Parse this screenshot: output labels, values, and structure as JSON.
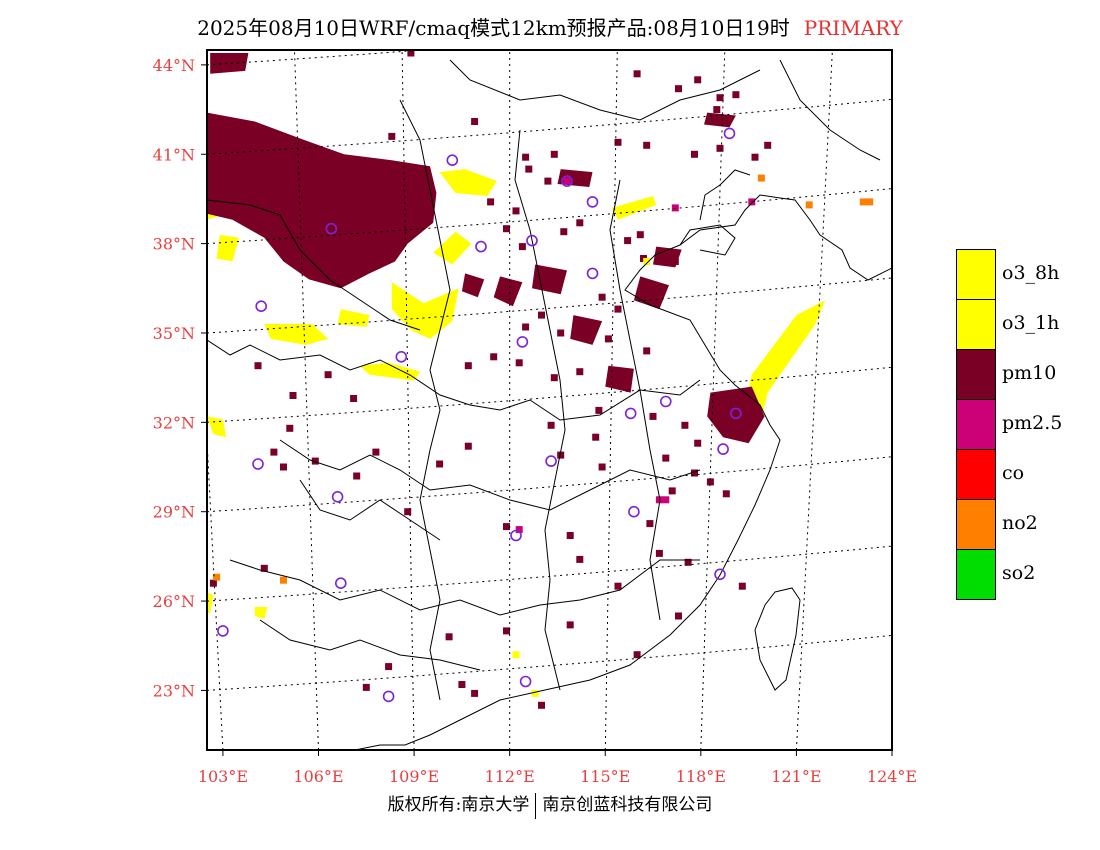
{
  "title": {
    "main": "2025年08月10日WRF/cmaq模式12km预报产品:08月10日19时",
    "tag": "PRIMARY"
  },
  "map": {
    "lon_range": [
      102.5,
      124
    ],
    "lat_range": [
      21,
      44.5
    ],
    "lat_labels": [
      "44°N",
      "41°N",
      "38°N",
      "35°N",
      "32°N",
      "29°N",
      "26°N",
      "23°N"
    ],
    "lon_labels": [
      "103°E",
      "106°E",
      "109°E",
      "112°E",
      "115°E",
      "118°E",
      "121°E",
      "124°E"
    ],
    "colors": {
      "o3_8h": "#ffff00",
      "pm10": "#7a0026",
      "pm2_5": "#cc0077",
      "no2": "#ff7f00",
      "station": "#7a22dd",
      "grid": "#000000",
      "border": "#000000"
    },
    "stations": [
      {
        "lon": 118.9,
        "lat": 41.7
      },
      {
        "lon": 110.2,
        "lat": 40.8
      },
      {
        "lon": 113.8,
        "lat": 40.1
      },
      {
        "lon": 114.6,
        "lat": 39.4
      },
      {
        "lon": 106.4,
        "lat": 38.5
      },
      {
        "lon": 111.1,
        "lat": 37.9
      },
      {
        "lon": 112.7,
        "lat": 38.1
      },
      {
        "lon": 114.6,
        "lat": 37.0
      },
      {
        "lon": 104.2,
        "lat": 35.9
      },
      {
        "lon": 112.4,
        "lat": 34.7
      },
      {
        "lon": 108.6,
        "lat": 34.2
      },
      {
        "lon": 116.9,
        "lat": 32.7
      },
      {
        "lon": 115.8,
        "lat": 32.3
      },
      {
        "lon": 119.1,
        "lat": 32.3
      },
      {
        "lon": 118.7,
        "lat": 31.1
      },
      {
        "lon": 104.1,
        "lat": 30.6
      },
      {
        "lon": 113.3,
        "lat": 30.7
      },
      {
        "lon": 106.6,
        "lat": 29.5
      },
      {
        "lon": 115.9,
        "lat": 29.0
      },
      {
        "lon": 112.2,
        "lat": 28.2
      },
      {
        "lon": 106.7,
        "lat": 26.6
      },
      {
        "lon": 118.6,
        "lat": 26.9
      },
      {
        "lon": 103.0,
        "lat": 25.0
      },
      {
        "lon": 112.5,
        "lat": 23.3
      },
      {
        "lon": 108.2,
        "lat": 22.8
      }
    ],
    "pm10_areas": [
      [
        [
          102.5,
          42.4
        ],
        [
          104,
          42.1
        ],
        [
          105.5,
          41.5
        ],
        [
          106.8,
          41.0
        ],
        [
          108.3,
          40.8
        ],
        [
          109.5,
          40.6
        ],
        [
          109.7,
          39.7
        ],
        [
          109.6,
          38.7
        ],
        [
          108.8,
          38.0
        ],
        [
          108.4,
          37.4
        ],
        [
          107.6,
          37.0
        ],
        [
          106.7,
          36.5
        ],
        [
          105.7,
          36.8
        ],
        [
          104.9,
          37.4
        ],
        [
          104.3,
          38.2
        ],
        [
          103.3,
          38.8
        ],
        [
          102.5,
          39.0
        ]
      ],
      [
        [
          102.6,
          44.4
        ],
        [
          103.8,
          44.4
        ],
        [
          103.7,
          43.8
        ],
        [
          102.6,
          43.7
        ]
      ],
      [
        [
          112.8,
          37.3
        ],
        [
          113.8,
          37.1
        ],
        [
          113.6,
          36.3
        ],
        [
          112.7,
          36.5
        ]
      ],
      [
        [
          118.3,
          33.0
        ],
        [
          119.6,
          33.2
        ],
        [
          120.0,
          32.2
        ],
        [
          119.5,
          31.3
        ],
        [
          118.7,
          31.5
        ],
        [
          118.2,
          32.2
        ]
      ],
      [
        [
          115.1,
          33.9
        ],
        [
          115.9,
          33.8
        ],
        [
          115.8,
          33.0
        ],
        [
          115.0,
          33.2
        ]
      ],
      [
        [
          114.0,
          35.6
        ],
        [
          114.9,
          35.4
        ],
        [
          114.6,
          34.6
        ],
        [
          113.9,
          34.8
        ]
      ],
      [
        [
          116.1,
          36.9
        ],
        [
          117.0,
          36.6
        ],
        [
          116.7,
          35.8
        ],
        [
          115.9,
          36.1
        ]
      ],
      [
        [
          116.6,
          37.9
        ],
        [
          117.4,
          37.8
        ],
        [
          117.2,
          37.2
        ],
        [
          116.5,
          37.3
        ]
      ],
      [
        [
          113.6,
          40.5
        ],
        [
          114.6,
          40.4
        ],
        [
          114.5,
          39.9
        ],
        [
          113.5,
          40.0
        ]
      ],
      [
        [
          118.2,
          42.4
        ],
        [
          119.1,
          42.3
        ],
        [
          118.9,
          41.9
        ],
        [
          118.1,
          42.0
        ]
      ],
      [
        [
          111.7,
          36.9
        ],
        [
          112.4,
          36.7
        ],
        [
          112.1,
          35.9
        ],
        [
          111.5,
          36.2
        ]
      ],
      [
        [
          110.6,
          37.0
        ],
        [
          111.2,
          36.8
        ],
        [
          111.0,
          36.2
        ],
        [
          110.5,
          36.4
        ]
      ]
    ],
    "o3_areas": [
      [
        [
          102.5,
          40.5
        ],
        [
          103.3,
          40.4
        ],
        [
          103.9,
          40.0
        ],
        [
          103.3,
          39.6
        ],
        [
          102.8,
          38.9
        ],
        [
          102.5,
          38.8
        ]
      ],
      [
        [
          102.9,
          38.3
        ],
        [
          103.5,
          38.2
        ],
        [
          103.3,
          37.4
        ],
        [
          102.8,
          37.5
        ]
      ],
      [
        [
          104.3,
          35.3
        ],
        [
          105.8,
          35.3
        ],
        [
          106.3,
          34.8
        ],
        [
          105.6,
          34.6
        ],
        [
          104.5,
          34.8
        ]
      ],
      [
        [
          107.3,
          33.9
        ],
        [
          108.2,
          34.0
        ],
        [
          109.2,
          33.7
        ],
        [
          109.0,
          33.4
        ],
        [
          107.6,
          33.6
        ]
      ],
      [
        [
          109.8,
          40.4
        ],
        [
          110.6,
          40.5
        ],
        [
          111.6,
          40.1
        ],
        [
          111.3,
          39.6
        ],
        [
          110.3,
          39.7
        ]
      ],
      [
        [
          108.3,
          36.7
        ],
        [
          109.3,
          36.0
        ],
        [
          110.4,
          36.5
        ],
        [
          110.2,
          35.4
        ],
        [
          109.5,
          34.8
        ],
        [
          108.9,
          35.1
        ],
        [
          108.3,
          35.8
        ]
      ],
      [
        [
          110.3,
          38.4
        ],
        [
          110.8,
          38.0
        ],
        [
          110.2,
          37.3
        ],
        [
          109.6,
          37.7
        ]
      ],
      [
        [
          106.7,
          35.8
        ],
        [
          107.6,
          35.6
        ],
        [
          107.5,
          35.2
        ],
        [
          106.6,
          35.3
        ]
      ],
      [
        [
          115.2,
          39.2
        ],
        [
          116.5,
          39.6
        ],
        [
          116.6,
          39.3
        ],
        [
          115.4,
          38.8
        ]
      ],
      [
        [
          119.3,
          32.2
        ],
        [
          119.6,
          33.6
        ],
        [
          121.0,
          35.6
        ],
        [
          121.9,
          36.1
        ],
        [
          121.6,
          35.3
        ],
        [
          120.1,
          33.0
        ],
        [
          119.9,
          32.1
        ]
      ],
      [
        [
          102.5,
          32.2
        ],
        [
          103.0,
          32.1
        ],
        [
          103.1,
          31.5
        ],
        [
          102.7,
          31.6
        ]
      ],
      [
        [
          102.5,
          26.3
        ],
        [
          102.7,
          26.2
        ],
        [
          102.6,
          25.6
        ],
        [
          102.5,
          25.6
        ]
      ],
      [
        [
          104.0,
          25.8
        ],
        [
          104.4,
          25.8
        ],
        [
          104.3,
          25.4
        ],
        [
          104.0,
          25.5
        ]
      ]
    ],
    "pm10_pixels": [
      [
        108.9,
        44.4
      ],
      [
        116.0,
        43.7
      ],
      [
        117.3,
        43.2
      ],
      [
        117.9,
        43.5
      ],
      [
        118.6,
        42.9
      ],
      [
        119.1,
        43.0
      ],
      [
        118.5,
        42.5
      ],
      [
        115.4,
        41.4
      ],
      [
        116.3,
        41.3
      ],
      [
        117.8,
        41.0
      ],
      [
        118.6,
        41.2
      ],
      [
        119.7,
        40.9
      ],
      [
        120.1,
        41.3
      ],
      [
        113.4,
        41.0
      ],
      [
        112.6,
        40.5
      ],
      [
        113.2,
        40.1
      ],
      [
        112.2,
        39.1
      ],
      [
        111.4,
        39.4
      ],
      [
        111.9,
        38.5
      ],
      [
        112.4,
        37.9
      ],
      [
        113.7,
        38.4
      ],
      [
        114.2,
        38.7
      ],
      [
        115.7,
        38.1
      ],
      [
        116.1,
        38.3
      ],
      [
        116.2,
        37.5
      ],
      [
        117.2,
        37.4
      ],
      [
        114.9,
        36.2
      ],
      [
        115.4,
        35.8
      ],
      [
        113.0,
        35.6
      ],
      [
        112.5,
        35.2
      ],
      [
        113.6,
        35.0
      ],
      [
        115.1,
        34.8
      ],
      [
        116.3,
        34.4
      ],
      [
        112.3,
        34.0
      ],
      [
        110.7,
        33.9
      ],
      [
        111.5,
        34.2
      ],
      [
        113.4,
        33.5
      ],
      [
        114.2,
        33.7
      ],
      [
        114.8,
        32.4
      ],
      [
        116.5,
        32.2
      ],
      [
        117.5,
        31.9
      ],
      [
        113.3,
        31.9
      ],
      [
        114.7,
        31.5
      ],
      [
        113.6,
        30.9
      ],
      [
        114.9,
        30.5
      ],
      [
        116.9,
        30.8
      ],
      [
        117.8,
        30.3
      ],
      [
        118.3,
        30.0
      ],
      [
        117.1,
        29.7
      ],
      [
        109.8,
        30.6
      ],
      [
        110.7,
        31.2
      ],
      [
        107.8,
        31.0
      ],
      [
        105.9,
        30.7
      ],
      [
        104.9,
        30.5
      ],
      [
        104.6,
        31.0
      ],
      [
        107.2,
        30.2
      ],
      [
        108.8,
        29.0
      ],
      [
        111.9,
        28.5
      ],
      [
        113.9,
        28.2
      ],
      [
        116.4,
        28.6
      ],
      [
        114.2,
        27.4
      ],
      [
        116.7,
        27.6
      ],
      [
        115.4,
        26.5
      ],
      [
        117.6,
        27.3
      ],
      [
        119.3,
        26.5
      ],
      [
        117.3,
        25.5
      ],
      [
        113.9,
        25.2
      ],
      [
        111.9,
        25.0
      ],
      [
        110.1,
        24.8
      ],
      [
        108.2,
        23.8
      ],
      [
        107.5,
        23.1
      ],
      [
        110.5,
        23.2
      ],
      [
        110.9,
        22.9
      ],
      [
        116.0,
        24.2
      ],
      [
        113.0,
        22.5
      ],
      [
        104.3,
        27.1
      ],
      [
        105.1,
        31.8
      ],
      [
        106.3,
        33.6
      ],
      [
        107.1,
        32.8
      ],
      [
        104.1,
        33.9
      ],
      [
        105.2,
        32.9
      ],
      [
        102.7,
        26.6
      ],
      [
        117.9,
        31.3
      ],
      [
        118.8,
        29.6
      ],
      [
        112.5,
        40.9
      ],
      [
        110.9,
        42.1
      ],
      [
        108.3,
        41.6
      ]
    ],
    "o3_pixels": [
      [
        112.2,
        24.2
      ],
      [
        112.8,
        22.9
      ],
      [
        116.3,
        37.4
      ]
    ],
    "pm25_pixels": [
      [
        116.7,
        29.4
      ],
      [
        116.9,
        29.4
      ],
      [
        112.3,
        28.4
      ],
      [
        119.6,
        39.4
      ],
      [
        113.8,
        40.1
      ],
      [
        117.2,
        39.2
      ]
    ],
    "no2_pixels": [
      [
        121.4,
        39.3
      ],
      [
        123.1,
        39.4
      ],
      [
        123.3,
        39.4
      ],
      [
        119.9,
        40.2
      ],
      [
        102.8,
        26.8
      ],
      [
        104.9,
        26.7
      ]
    ]
  },
  "legend": [
    {
      "label": "o3_8h",
      "color": "#ffff00"
    },
    {
      "label": "o3_1h",
      "color": "#ffff00"
    },
    {
      "label": "pm10",
      "color": "#7a0026"
    },
    {
      "label": "pm2.5",
      "color": "#cc0077"
    },
    {
      "label": "co",
      "color": "#ff0000"
    },
    {
      "label": "no2",
      "color": "#ff7f00"
    },
    {
      "label": "so2",
      "color": "#00dd00"
    }
  ],
  "footer": {
    "left": "版权所有:南京大学",
    "right": "南京创蓝科技有限公司"
  }
}
